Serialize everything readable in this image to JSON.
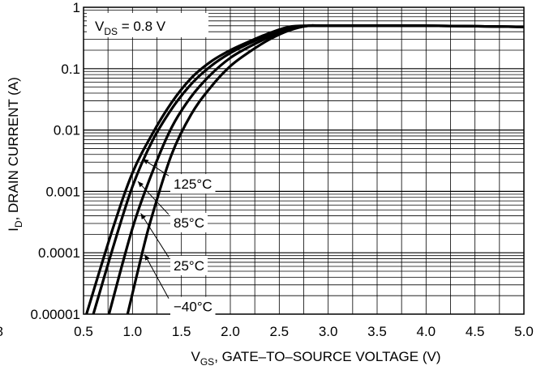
{
  "chart_data": {
    "type": "line",
    "x_scale": "linear",
    "y_scale": "log",
    "xlim": [
      0.5,
      5.0
    ],
    "ylim": [
      1e-05,
      1
    ],
    "x_ticks": [
      "0.5",
      "1.0",
      "1.5",
      "2.0",
      "2.5",
      "3.0",
      "3.5",
      "4.0",
      "4.5",
      "5.0"
    ],
    "y_ticks": [
      "0.00001",
      "0.0001",
      "0.001",
      "0.01",
      "0.1",
      "1"
    ],
    "xlabel": {
      "main": "V",
      "sub": "GS",
      "rest": ", GATE–TO–SOURCE VOLTAGE (V)"
    },
    "ylabel": {
      "main": "I",
      "sub": "D",
      "rest": ", DRAIN CURRENT (A)"
    },
    "condition": {
      "main": "V",
      "sub": "DS",
      "rest": " = 0.8 V"
    },
    "grid": true,
    "left_edge_fragment": "8",
    "series": [
      {
        "name": "125°C",
        "x": [
          0.53,
          0.8,
          1.0,
          1.2,
          1.4,
          1.6,
          1.8,
          2.0,
          2.2,
          2.4,
          2.6,
          2.8,
          3.0,
          4.0,
          5.0
        ],
        "y": [
          1e-05,
          0.00025,
          0.002,
          0.0085,
          0.028,
          0.07,
          0.13,
          0.2,
          0.28,
          0.38,
          0.48,
          0.5,
          0.5,
          0.5,
          0.48
        ]
      },
      {
        "name": "85°C",
        "x": [
          0.6,
          0.8,
          1.0,
          1.2,
          1.4,
          1.6,
          1.8,
          2.0,
          2.2,
          2.4,
          2.6,
          2.8,
          3.0,
          4.0,
          5.0
        ],
        "y": [
          1e-05,
          0.00012,
          0.0012,
          0.0065,
          0.022,
          0.056,
          0.11,
          0.18,
          0.26,
          0.36,
          0.47,
          0.5,
          0.5,
          0.5,
          0.48
        ]
      },
      {
        "name": "25°C",
        "x": [
          0.76,
          1.0,
          1.2,
          1.4,
          1.6,
          1.8,
          2.0,
          2.2,
          2.4,
          2.6,
          2.8,
          3.0,
          4.0,
          5.0
        ],
        "y": [
          1e-05,
          0.00025,
          0.002,
          0.011,
          0.035,
          0.08,
          0.15,
          0.23,
          0.33,
          0.44,
          0.5,
          0.5,
          0.5,
          0.48
        ]
      },
      {
        "name": "−40°C",
        "x": [
          0.95,
          1.1,
          1.2,
          1.4,
          1.6,
          1.8,
          2.0,
          2.2,
          2.4,
          2.6,
          2.8,
          3.0,
          4.0,
          5.0
        ],
        "y": [
          1e-05,
          0.0001,
          0.0004,
          0.004,
          0.018,
          0.05,
          0.11,
          0.19,
          0.3,
          0.42,
          0.5,
          0.5,
          0.5,
          0.48
        ]
      }
    ],
    "annotations": [
      {
        "label": "125°C",
        "series": 0,
        "point_x": 1.08,
        "text_x": 1.42,
        "text_y": 0.0015
      },
      {
        "label": "85°C",
        "series": 1,
        "point_x": 1.03,
        "text_x": 1.42,
        "text_y": 0.00035
      },
      {
        "label": "25°C",
        "series": 2,
        "point_x": 1.06,
        "text_x": 1.42,
        "text_y": 7e-05
      },
      {
        "label": "−40°C",
        "series": 3,
        "point_x": 1.1,
        "text_x": 1.42,
        "text_y": 1.5e-05
      }
    ]
  }
}
